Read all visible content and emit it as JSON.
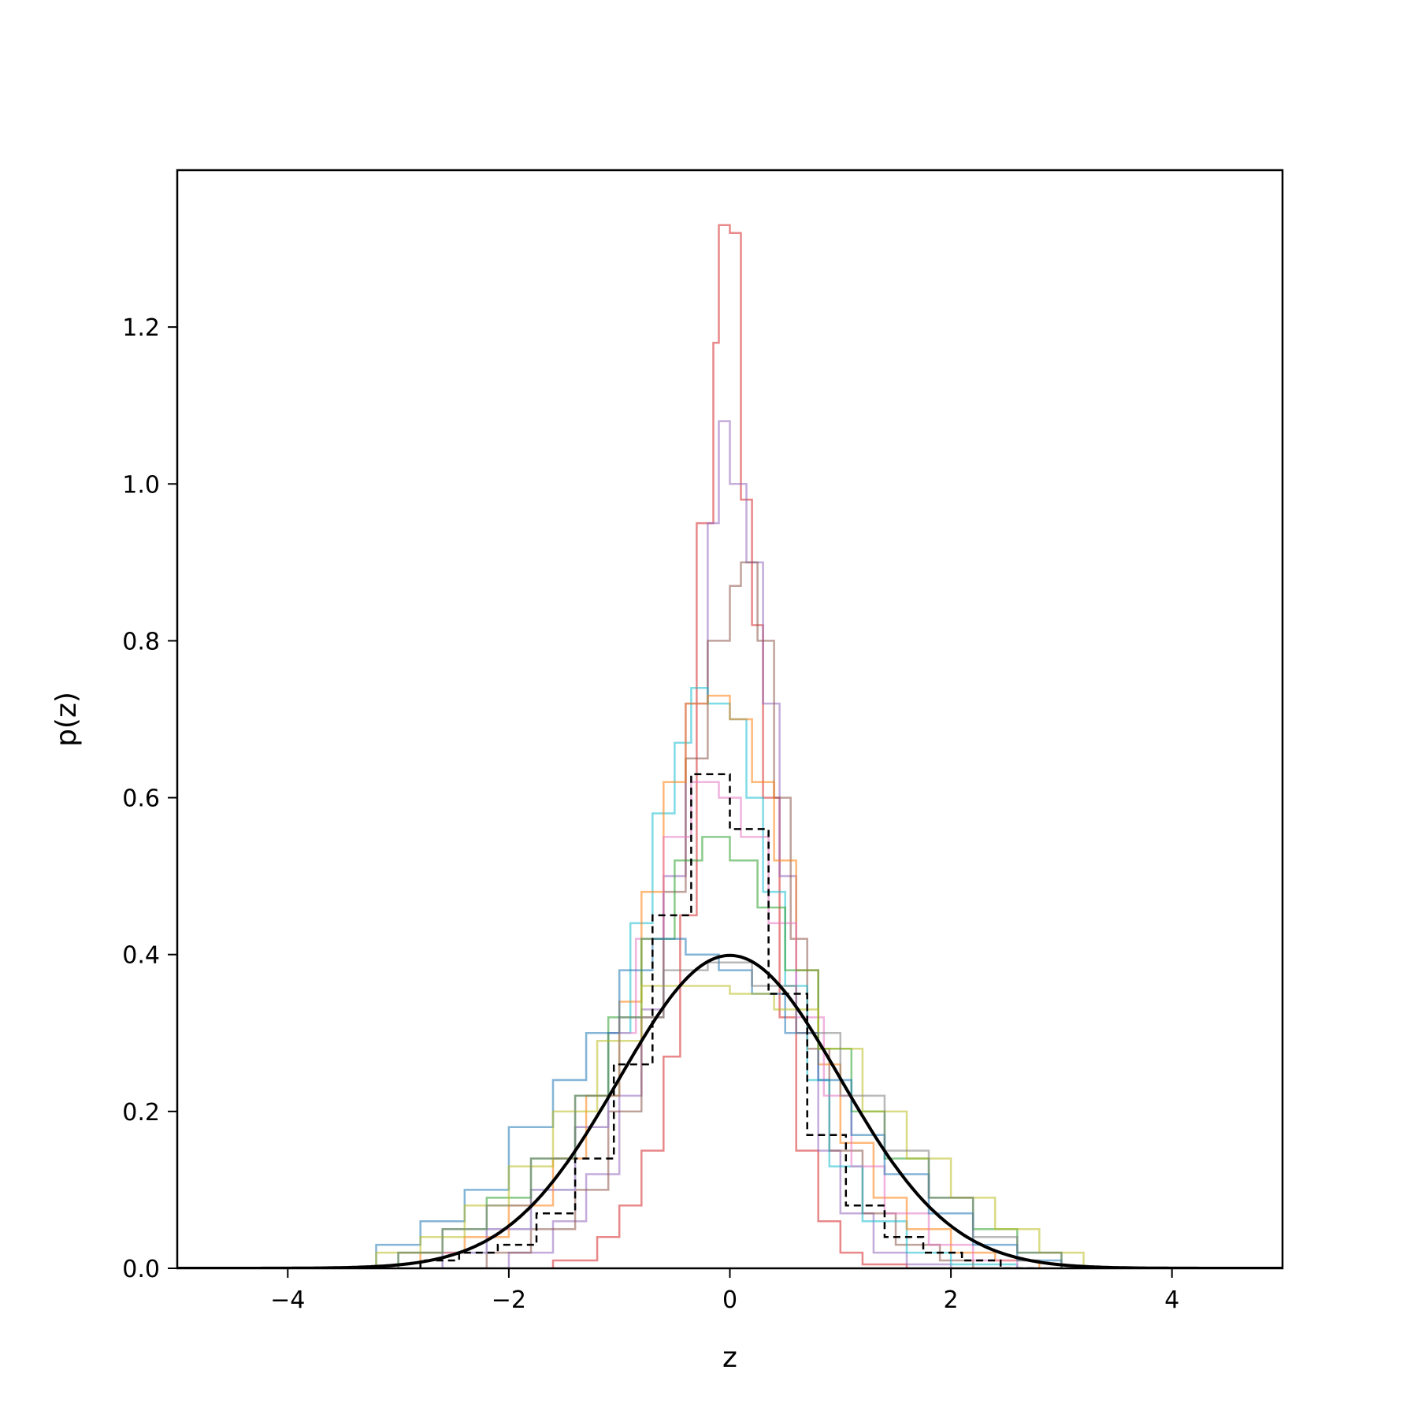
{
  "chart_data": {
    "type": "histogram",
    "xlabel": "z",
    "ylabel": "p(z)",
    "xlim": [
      -5,
      5
    ],
    "ylim": [
      0,
      1.4
    ],
    "grid": false,
    "legend": "none",
    "x_ticks": [
      -4,
      -2,
      0,
      2,
      4
    ],
    "x_tick_labels": [
      "−4",
      "−2",
      "0",
      "2",
      "4"
    ],
    "y_ticks": [
      0.0,
      0.2,
      0.4,
      0.6,
      0.8,
      1.0,
      1.2
    ],
    "y_tick_labels": [
      "0.0",
      "0.2",
      "0.4",
      "0.6",
      "0.8",
      "1.0",
      "1.2"
    ],
    "reference_curve": {
      "style": "solid",
      "color": "#000000",
      "mean": 0,
      "std": 1,
      "peak": 0.399
    },
    "dashed_histogram": {
      "color": "#000000",
      "edges": [
        -2.8,
        -2.45,
        -2.1,
        -1.75,
        -1.4,
        -1.05,
        -0.7,
        -0.35,
        0.0,
        0.35,
        0.7,
        1.05,
        1.4,
        1.75,
        2.1,
        2.45,
        2.8
      ],
      "values": [
        0.01,
        0.02,
        0.03,
        0.07,
        0.14,
        0.26,
        0.45,
        0.63,
        0.56,
        0.35,
        0.17,
        0.08,
        0.04,
        0.02,
        0.01,
        0.0
      ]
    },
    "series": [
      {
        "color": "#d62728",
        "edges": [
          -1.6,
          -1.2,
          -1.0,
          -0.8,
          -0.6,
          -0.45,
          -0.3,
          -0.15,
          -0.1,
          0.0,
          0.1,
          0.2,
          0.3,
          0.45,
          0.6,
          0.8,
          1.0,
          1.2,
          1.6
        ],
        "values": [
          0.01,
          0.04,
          0.08,
          0.15,
          0.27,
          0.45,
          0.95,
          1.18,
          1.33,
          1.32,
          0.98,
          0.82,
          0.6,
          0.32,
          0.15,
          0.06,
          0.02,
          0.005
        ]
      },
      {
        "color": "#9467bd",
        "edges": [
          -2.0,
          -1.6,
          -1.3,
          -1.0,
          -0.8,
          -0.6,
          -0.4,
          -0.2,
          -0.1,
          0.0,
          0.15,
          0.3,
          0.45,
          0.6,
          0.8,
          1.0,
          1.3,
          1.6,
          2.0
        ],
        "values": [
          0.02,
          0.06,
          0.12,
          0.22,
          0.33,
          0.5,
          0.72,
          0.95,
          1.08,
          1.0,
          0.9,
          0.72,
          0.5,
          0.3,
          0.15,
          0.07,
          0.02,
          0.005
        ]
      },
      {
        "color": "#8c564b",
        "edges": [
          -2.2,
          -1.8,
          -1.4,
          -1.1,
          -0.8,
          -0.6,
          -0.4,
          -0.2,
          0.0,
          0.1,
          0.25,
          0.4,
          0.55,
          0.7,
          0.9,
          1.2,
          1.5,
          1.9,
          2.2
        ],
        "values": [
          0.02,
          0.05,
          0.1,
          0.2,
          0.32,
          0.48,
          0.65,
          0.8,
          0.87,
          0.9,
          0.8,
          0.6,
          0.42,
          0.28,
          0.15,
          0.07,
          0.03,
          0.01
        ]
      },
      {
        "color": "#17becf",
        "edges": [
          -2.6,
          -2.2,
          -1.8,
          -1.4,
          -1.1,
          -0.9,
          -0.7,
          -0.5,
          -0.35,
          -0.2,
          0.0,
          0.15,
          0.3,
          0.5,
          0.7,
          0.9,
          1.2,
          1.6,
          2.0,
          2.6
        ],
        "values": [
          0.02,
          0.05,
          0.1,
          0.18,
          0.3,
          0.44,
          0.58,
          0.67,
          0.74,
          0.72,
          0.7,
          0.6,
          0.48,
          0.36,
          0.24,
          0.13,
          0.06,
          0.02,
          0.005
        ]
      },
      {
        "color": "#ff7f0e",
        "edges": [
          -2.8,
          -2.4,
          -2.0,
          -1.6,
          -1.3,
          -1.0,
          -0.8,
          -0.6,
          -0.4,
          -0.2,
          0.0,
          0.2,
          0.4,
          0.6,
          0.8,
          1.0,
          1.3,
          1.6,
          2.0,
          2.4,
          2.8
        ],
        "values": [
          0.02,
          0.04,
          0.08,
          0.14,
          0.22,
          0.34,
          0.48,
          0.62,
          0.72,
          0.73,
          0.7,
          0.62,
          0.52,
          0.38,
          0.26,
          0.16,
          0.09,
          0.05,
          0.02,
          0.01
        ]
      },
      {
        "color": "#e377c2",
        "edges": [
          -2.6,
          -2.2,
          -1.8,
          -1.4,
          -1.1,
          -0.85,
          -0.6,
          -0.35,
          -0.1,
          0.1,
          0.35,
          0.6,
          0.85,
          1.1,
          1.4,
          1.8,
          2.2,
          2.6
        ],
        "values": [
          0.02,
          0.05,
          0.1,
          0.18,
          0.3,
          0.42,
          0.55,
          0.62,
          0.6,
          0.55,
          0.44,
          0.32,
          0.22,
          0.13,
          0.07,
          0.03,
          0.01
        ]
      },
      {
        "color": "#2ca02c",
        "edges": [
          -3.0,
          -2.6,
          -2.2,
          -1.8,
          -1.4,
          -1.1,
          -0.8,
          -0.5,
          -0.25,
          0.0,
          0.25,
          0.5,
          0.8,
          1.1,
          1.4,
          1.8,
          2.2,
          2.6,
          3.0
        ],
        "values": [
          0.02,
          0.05,
          0.09,
          0.14,
          0.22,
          0.32,
          0.42,
          0.52,
          0.55,
          0.52,
          0.46,
          0.38,
          0.28,
          0.2,
          0.14,
          0.09,
          0.05,
          0.02
        ]
      },
      {
        "color": "#1f77b4",
        "edges": [
          -3.2,
          -2.8,
          -2.4,
          -2.0,
          -1.6,
          -1.3,
          -1.0,
          -0.7,
          -0.4,
          -0.1,
          0.2,
          0.5,
          0.8,
          1.1,
          1.4,
          1.8,
          2.2,
          2.6,
          3.0
        ],
        "values": [
          0.03,
          0.06,
          0.1,
          0.18,
          0.24,
          0.3,
          0.38,
          0.42,
          0.4,
          0.38,
          0.35,
          0.3,
          0.24,
          0.17,
          0.12,
          0.07,
          0.03,
          0.01
        ]
      },
      {
        "color": "#bcbd22",
        "edges": [
          -3.2,
          -2.8,
          -2.4,
          -2.0,
          -1.6,
          -1.2,
          -0.8,
          -0.4,
          0.0,
          0.4,
          0.8,
          1.2,
          1.6,
          2.0,
          2.4,
          2.8,
          3.2
        ],
        "values": [
          0.02,
          0.04,
          0.08,
          0.13,
          0.2,
          0.29,
          0.36,
          0.36,
          0.35,
          0.33,
          0.28,
          0.2,
          0.14,
          0.09,
          0.05,
          0.02
        ]
      },
      {
        "color": "#7f7f7f",
        "edges": [
          -3.0,
          -2.6,
          -2.2,
          -1.8,
          -1.4,
          -1.0,
          -0.6,
          -0.2,
          0.2,
          0.6,
          1.0,
          1.4,
          1.8,
          2.2,
          2.6,
          3.0
        ],
        "values": [
          0.02,
          0.05,
          0.08,
          0.14,
          0.22,
          0.32,
          0.38,
          0.39,
          0.36,
          0.3,
          0.22,
          0.15,
          0.09,
          0.04,
          0.02
        ]
      }
    ]
  }
}
